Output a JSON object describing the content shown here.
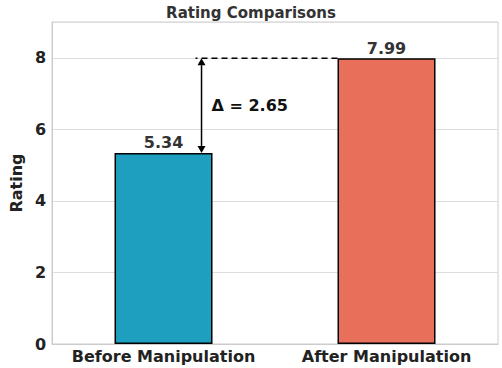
{
  "chart_data": {
    "type": "bar",
    "title": "Rating Comparisons",
    "ylabel": "Rating",
    "categories": [
      "Before Manipulation",
      "After Manipulation"
    ],
    "values": [
      5.34,
      7.99
    ],
    "colors": [
      "#1f9fbf",
      "#e8705a"
    ],
    "ylim": [
      0,
      9
    ],
    "yticks": [
      0,
      2,
      4,
      6,
      8
    ],
    "grid": true,
    "data_labels": true,
    "annotations": [
      "Δ = 2.65"
    ]
  }
}
